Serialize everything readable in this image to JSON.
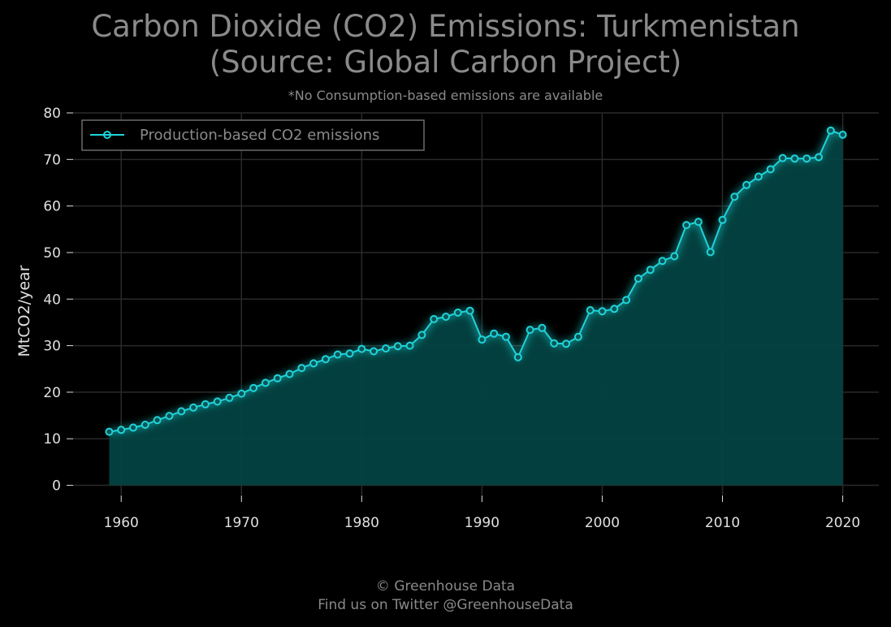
{
  "title_line1": "Carbon Dioxide (CO2) Emissions: Turkmenistan",
  "title_line2": "(Source: Global Carbon Project)",
  "subtitle": "*No Consumption-based emissions are available",
  "footer_line1": "© Greenhouse Data",
  "footer_line2": "Find us on Twitter @GreenhouseData",
  "colors": {
    "background": "#000000",
    "line": "#1fd3d8",
    "fill": "#034241",
    "grid": "#2a2a2a",
    "text": "#8a8a8a",
    "tick": "#e0e0e0"
  },
  "chart_data": {
    "type": "area",
    "title": "Carbon Dioxide (CO2) Emissions: Turkmenistan (Source: Global Carbon Project)",
    "xlabel": "",
    "ylabel": "MtCO2/year",
    "xlim": [
      1956,
      2023
    ],
    "ylim": [
      -2,
      80
    ],
    "x_ticks": [
      1960,
      1970,
      1980,
      1990,
      2000,
      2010,
      2020
    ],
    "y_ticks": [
      0,
      10,
      20,
      30,
      40,
      50,
      60,
      70,
      80
    ],
    "grid": true,
    "legend_position": "top-left",
    "x": [
      1959,
      1960,
      1961,
      1962,
      1963,
      1964,
      1965,
      1966,
      1967,
      1968,
      1969,
      1970,
      1971,
      1972,
      1973,
      1974,
      1975,
      1976,
      1977,
      1978,
      1979,
      1980,
      1981,
      1982,
      1983,
      1984,
      1985,
      1986,
      1987,
      1988,
      1989,
      1990,
      1991,
      1992,
      1993,
      1994,
      1995,
      1996,
      1997,
      1998,
      1999,
      2000,
      2001,
      2002,
      2003,
      2004,
      2005,
      2006,
      2007,
      2008,
      2009,
      2010,
      2011,
      2012,
      2013,
      2014,
      2015,
      2016,
      2017,
      2018,
      2019,
      2020
    ],
    "series": [
      {
        "name": "Production-based CO2 emissions",
        "values": [
          11.5,
          11.9,
          12.4,
          13.0,
          14.0,
          14.9,
          15.9,
          16.7,
          17.4,
          18.0,
          18.8,
          19.7,
          20.9,
          22.0,
          23.0,
          23.9,
          25.2,
          26.2,
          27.1,
          28.1,
          28.3,
          29.3,
          28.8,
          29.4,
          29.9,
          30.0,
          32.3,
          35.7,
          36.2,
          37.1,
          37.5,
          31.3,
          32.6,
          31.9,
          27.5,
          33.4,
          33.8,
          30.5,
          30.4,
          31.9,
          37.6,
          37.4,
          37.9,
          39.8,
          44.4,
          46.3,
          48.2,
          49.2,
          55.9,
          56.6,
          50.1,
          57.0,
          62.0,
          64.5,
          66.3,
          67.9,
          70.3,
          70.2,
          70.2,
          70.5,
          76.2,
          75.3
        ]
      }
    ]
  }
}
